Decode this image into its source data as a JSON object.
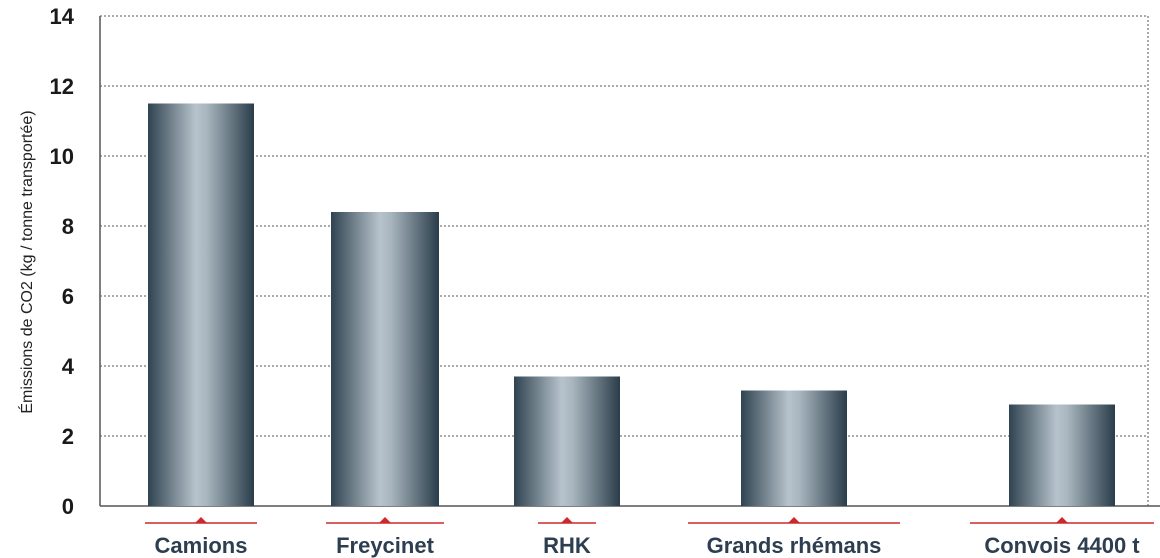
{
  "chart_data": {
    "type": "bar",
    "ylabel": "Émissions de CO2 (kg / tonne transportée)",
    "xlabel": "",
    "categories": [
      "Camions",
      "Freycinet",
      "RHK",
      "Grands rhémans",
      "Convois 4400 t"
    ],
    "values": [
      11.5,
      8.4,
      3.7,
      3.3,
      2.9
    ],
    "ylim": [
      0,
      14
    ],
    "yticks": [
      0,
      2,
      4,
      6,
      8,
      10,
      12,
      14
    ],
    "grid": true,
    "legend": "none",
    "colors": {
      "bar_dark": "#2f4350",
      "bar_light": "#b7c3cc",
      "grid": "#555555",
      "marker": "#cc2a2a",
      "label": "#2c3e50"
    }
  }
}
